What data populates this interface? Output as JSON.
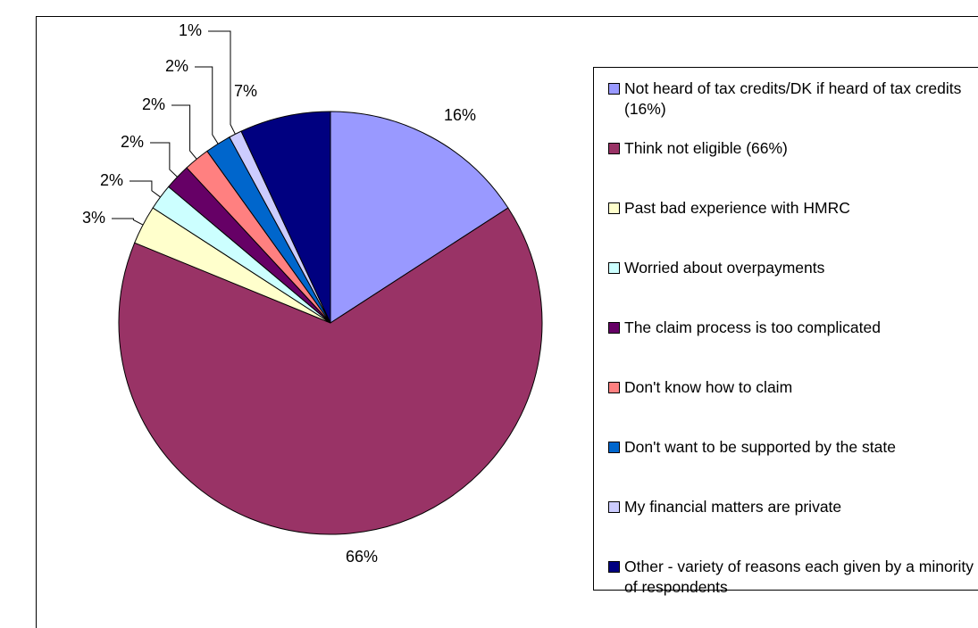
{
  "chart_data": {
    "type": "pie",
    "categories": [
      "Not heard of tax credits/DK if heard of tax credits (16%)",
      "Think not eligible (66%)",
      "Past bad experience with HMRC",
      "Worried about overpayments",
      "The claim process is too complicated",
      "Don't know how to claim",
      "Don't want to be supported by the state",
      "My financial matters are private",
      "Other - variety of reasons each given by a minority of respondents"
    ],
    "values": [
      16,
      66,
      3,
      2,
      2,
      2,
      2,
      1,
      7
    ],
    "value_labels": [
      "16%",
      "66%",
      "3%",
      "2%",
      "2%",
      "2%",
      "2%",
      "1%",
      "7%"
    ],
    "colors": [
      "#9999ff",
      "#993366",
      "#ffffcc",
      "#ccffff",
      "#660066",
      "#ff8080",
      "#0066cc",
      "#ccccff",
      "#000080"
    ],
    "legend": "right"
  }
}
